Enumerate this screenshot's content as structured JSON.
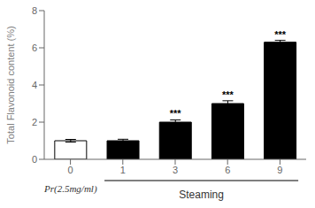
{
  "chart_data": {
    "type": "bar",
    "categories": [
      "0",
      "1",
      "3",
      "6",
      "9"
    ],
    "values": [
      1.0,
      1.0,
      2.0,
      3.0,
      6.3
    ],
    "errors": [
      0.07,
      0.08,
      0.12,
      0.15,
      0.1
    ],
    "colors": [
      "white",
      "black",
      "black",
      "black",
      "black"
    ],
    "ylabel": "Total Flavonoid content (%)",
    "xlabel": "Steaming",
    "annotations": [
      {
        "category": "3",
        "text": "***"
      },
      {
        "category": "6",
        "text": "***"
      },
      {
        "category": "9",
        "text": "***"
      },
      {
        "text": "Pr(2.5mg/ml)"
      }
    ],
    "ylim": [
      0,
      8
    ],
    "yticks": [
      0,
      2,
      4,
      6,
      8
    ],
    "grid": false
  }
}
